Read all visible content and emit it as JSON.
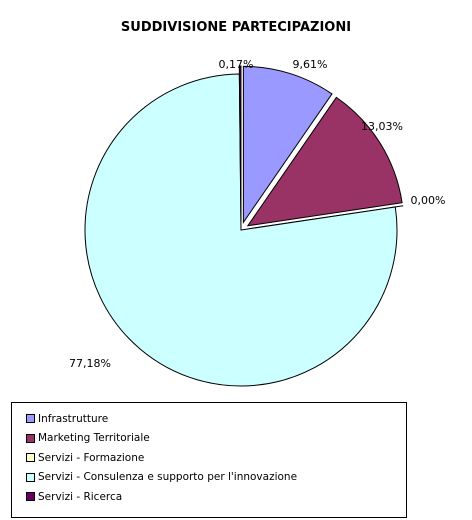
{
  "chart_data": {
    "type": "pie",
    "title": "SUDDIVISIONE PARTECIPAZIONI",
    "slices": [
      {
        "name": "Infrastrutture",
        "value": 9.61,
        "label": "9,61%",
        "color": "#9999FF",
        "exploded": true
      },
      {
        "name": "Marketing Territoriale",
        "value": 13.03,
        "label": "13,03%",
        "color": "#993366",
        "exploded": true
      },
      {
        "name": "Servizi - Formazione",
        "value": 0.0,
        "label": "0,00%",
        "color": "#FFFFCC",
        "exploded": true
      },
      {
        "name": "Servizi - Consulenza e supporto per l'innovazione",
        "value": 77.18,
        "label": "77,18%",
        "color": "#CCFFFF",
        "exploded": false
      },
      {
        "name": "Servizi - Ricerca",
        "value": 0.17,
        "label": "0,17%",
        "color": "#660066",
        "exploded": true
      }
    ],
    "legend_position": "bottom"
  }
}
